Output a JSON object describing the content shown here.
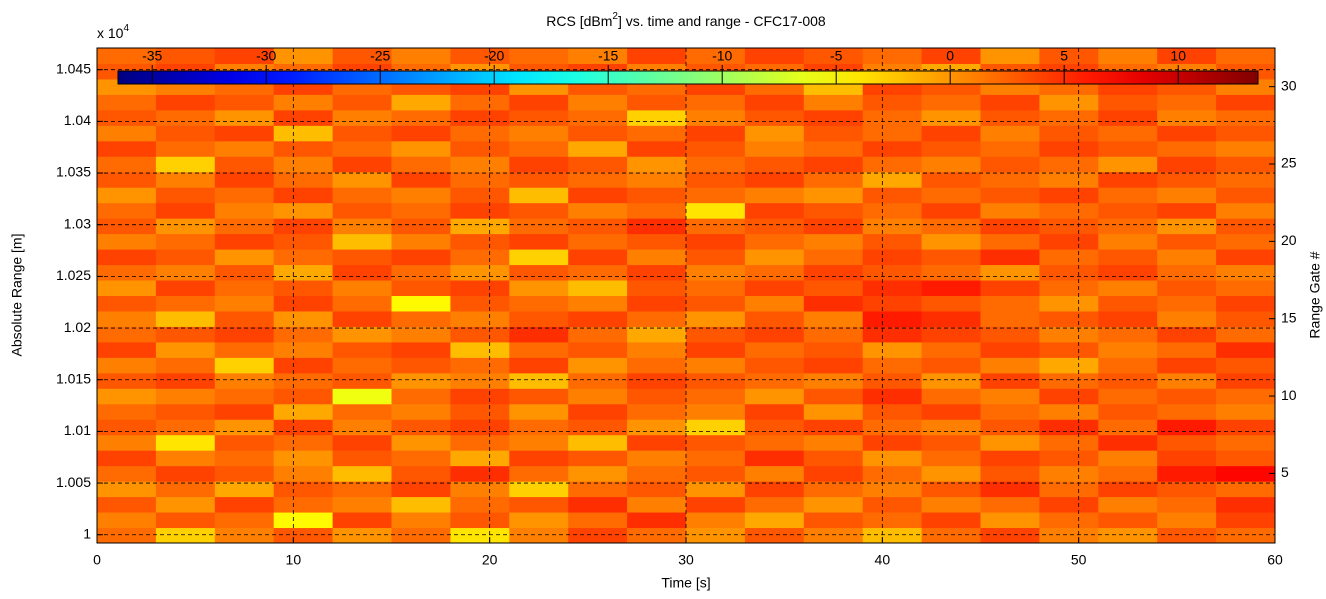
{
  "chart_data": {
    "type": "heatmap",
    "title": {
      "text": "RCS [dBm",
      "sup": "2",
      "rest": "] vs. time and range - CFC17-008"
    },
    "xlabel": "Time [s]",
    "ylabel": "Absolute Range [m]",
    "y2label": "Range Gate #",
    "yscale_label": {
      "text": "x 10",
      "sup": "4"
    },
    "xlim": [
      0,
      60
    ],
    "xticks": [
      0,
      10,
      20,
      30,
      40,
      50,
      60
    ],
    "ylim": [
      9992,
      10471
    ],
    "yticks": [
      {
        "value": 10000,
        "label": "1"
      },
      {
        "value": 10050,
        "label": "1.005"
      },
      {
        "value": 10100,
        "label": "1.01"
      },
      {
        "value": 10150,
        "label": "1.015"
      },
      {
        "value": 10200,
        "label": "1.02"
      },
      {
        "value": 10250,
        "label": "1.025"
      },
      {
        "value": 10300,
        "label": "1.03"
      },
      {
        "value": 10350,
        "label": "1.035"
      },
      {
        "value": 10400,
        "label": "1.04"
      },
      {
        "value": 10450,
        "label": "1.045"
      }
    ],
    "y2lim": [
      0.5,
      32.5
    ],
    "y2ticks": [
      5,
      10,
      15,
      20,
      25,
      30
    ],
    "clim": [
      -36.5,
      13.5
    ],
    "cticks": [
      -35,
      -30,
      -25,
      -20,
      -15,
      -10,
      -5,
      0,
      5,
      10
    ],
    "grid": true,
    "colormap": "jet",
    "x": [
      1.5,
      4.5,
      7.5,
      10.5,
      13.5,
      16.5,
      19.5,
      22.5,
      25.5,
      28.5,
      31.5,
      34.5,
      37.5,
      40.5,
      43.5,
      46.5,
      49.5,
      52.5,
      55.5,
      58.5
    ],
    "y": [
      1,
      2,
      3,
      4,
      5,
      6,
      7,
      8,
      9,
      10,
      11,
      12,
      13,
      14,
      15,
      16,
      17,
      18,
      19,
      20,
      21,
      22,
      23,
      24,
      25,
      26,
      27,
      28,
      29,
      30,
      31,
      32
    ],
    "z": [
      [
        2,
        -3,
        1,
        3,
        0,
        2,
        -4,
        1,
        4,
        2,
        0,
        3,
        1,
        -2,
        2,
        4,
        1,
        0,
        3,
        2
      ],
      [
        1,
        3,
        2,
        -5,
        4,
        1,
        3,
        0,
        2,
        5,
        1,
        -1,
        3,
        2,
        4,
        0,
        2,
        3,
        1,
        4
      ],
      [
        3,
        0,
        4,
        2,
        1,
        -2,
        2,
        3,
        5,
        1,
        4,
        2,
        0,
        3,
        1,
        2,
        4,
        1,
        2,
        5
      ],
      [
        0,
        2,
        -1,
        3,
        2,
        4,
        1,
        -3,
        2,
        3,
        0,
        4,
        2,
        1,
        3,
        5,
        2,
        4,
        3,
        2
      ],
      [
        2,
        4,
        3,
        1,
        -2,
        3,
        5,
        2,
        0,
        2,
        3,
        1,
        4,
        2,
        0,
        3,
        1,
        2,
        6,
        7
      ],
      [
        4,
        1,
        2,
        0,
        3,
        2,
        -1,
        4,
        3,
        1,
        2,
        5,
        3,
        0,
        2,
        4,
        3,
        1,
        4,
        3
      ],
      [
        1,
        -4,
        3,
        2,
        4,
        0,
        2,
        1,
        -2,
        4,
        3,
        2,
        1,
        4,
        3,
        0,
        2,
        5,
        3,
        2
      ],
      [
        3,
        2,
        0,
        4,
        1,
        3,
        4,
        2,
        3,
        0,
        -3,
        3,
        4,
        2,
        1,
        3,
        5,
        2,
        6,
        4
      ],
      [
        2,
        3,
        4,
        -1,
        2,
        1,
        3,
        0,
        4,
        2,
        1,
        4,
        0,
        3,
        4,
        2,
        1,
        3,
        2,
        1
      ],
      [
        0,
        1,
        2,
        3,
        -6,
        2,
        4,
        3,
        1,
        3,
        2,
        0,
        3,
        5,
        2,
        1,
        4,
        2,
        3,
        2
      ],
      [
        3,
        4,
        1,
        2,
        3,
        0,
        1,
        -2,
        2,
        4,
        3,
        2,
        1,
        3,
        0,
        4,
        2,
        3,
        1,
        4
      ],
      [
        1,
        2,
        -3,
        4,
        2,
        3,
        2,
        4,
        0,
        2,
        1,
        3,
        4,
        2,
        3,
        1,
        -1,
        2,
        4,
        3
      ],
      [
        4,
        0,
        2,
        1,
        3,
        4,
        -2,
        2,
        3,
        1,
        4,
        2,
        3,
        0,
        2,
        4,
        3,
        1,
        2,
        5
      ],
      [
        2,
        3,
        4,
        2,
        0,
        1,
        3,
        5,
        2,
        -1,
        3,
        4,
        2,
        5,
        4,
        3,
        1,
        2,
        4,
        2
      ],
      [
        1,
        -2,
        3,
        0,
        4,
        2,
        1,
        3,
        4,
        2,
        0,
        3,
        1,
        6,
        5,
        2,
        3,
        4,
        1,
        3
      ],
      [
        3,
        2,
        1,
        4,
        2,
        -5,
        3,
        2,
        1,
        4,
        3,
        1,
        5,
        4,
        3,
        2,
        0,
        3,
        2,
        4
      ],
      [
        0,
        4,
        2,
        3,
        1,
        3,
        4,
        0,
        -2,
        3,
        2,
        4,
        3,
        5,
        6,
        4,
        2,
        1,
        3,
        2
      ],
      [
        2,
        1,
        3,
        -1,
        4,
        2,
        0,
        3,
        2,
        4,
        1,
        2,
        4,
        3,
        2,
        0,
        3,
        4,
        2,
        1
      ],
      [
        4,
        3,
        0,
        2,
        3,
        4,
        2,
        -3,
        4,
        1,
        3,
        0,
        2,
        4,
        3,
        5,
        2,
        3,
        1,
        4
      ],
      [
        1,
        2,
        4,
        3,
        -2,
        1,
        3,
        4,
        2,
        3,
        4,
        2,
        1,
        3,
        0,
        2,
        4,
        1,
        3,
        2
      ],
      [
        3,
        0,
        2,
        4,
        1,
        3,
        -1,
        2,
        3,
        5,
        2,
        3,
        4,
        1,
        2,
        4,
        3,
        2,
        0,
        3
      ],
      [
        2,
        4,
        1,
        0,
        3,
        2,
        4,
        3,
        1,
        2,
        -4,
        4,
        3,
        2,
        4,
        1,
        2,
        3,
        4,
        1
      ],
      [
        0,
        3,
        2,
        4,
        2,
        1,
        3,
        -2,
        4,
        3,
        2,
        1,
        0,
        3,
        2,
        3,
        4,
        2,
        1,
        3
      ],
      [
        3,
        1,
        4,
        2,
        0,
        4,
        2,
        3,
        2,
        1,
        3,
        4,
        2,
        -1,
        3,
        2,
        1,
        4,
        3,
        2
      ],
      [
        2,
        -3,
        3,
        1,
        4,
        2,
        1,
        4,
        3,
        0,
        2,
        3,
        4,
        2,
        1,
        3,
        2,
        0,
        4,
        3
      ],
      [
        4,
        2,
        1,
        3,
        2,
        0,
        3,
        2,
        -1,
        4,
        3,
        1,
        2,
        4,
        3,
        2,
        4,
        3,
        2,
        1
      ],
      [
        1,
        3,
        4,
        -2,
        3,
        4,
        2,
        1,
        3,
        2,
        4,
        0,
        3,
        2,
        4,
        1,
        3,
        2,
        4,
        3
      ],
      [
        3,
        2,
        0,
        4,
        1,
        2,
        4,
        3,
        2,
        -3,
        1,
        3,
        4,
        2,
        0,
        3,
        2,
        4,
        1,
        2
      ],
      [
        2,
        4,
        3,
        1,
        3,
        -1,
        2,
        4,
        1,
        3,
        2,
        4,
        1,
        3,
        2,
        4,
        0,
        3,
        2,
        4
      ],
      [
        0,
        1,
        2,
        4,
        2,
        3,
        4,
        0,
        3,
        2,
        4,
        2,
        -2,
        4,
        3,
        1,
        2,
        4,
        3,
        1
      ],
      [
        3,
        4,
        1,
        2,
        4,
        2,
        0,
        3,
        4,
        1,
        3,
        2,
        4,
        1,
        -1,
        3,
        4,
        2,
        1,
        3
      ],
      [
        2,
        3,
        4,
        0,
        3,
        1,
        3,
        2,
        1,
        4,
        2,
        4,
        3,
        2,
        4,
        0,
        3,
        1,
        4,
        2
      ]
    ]
  }
}
